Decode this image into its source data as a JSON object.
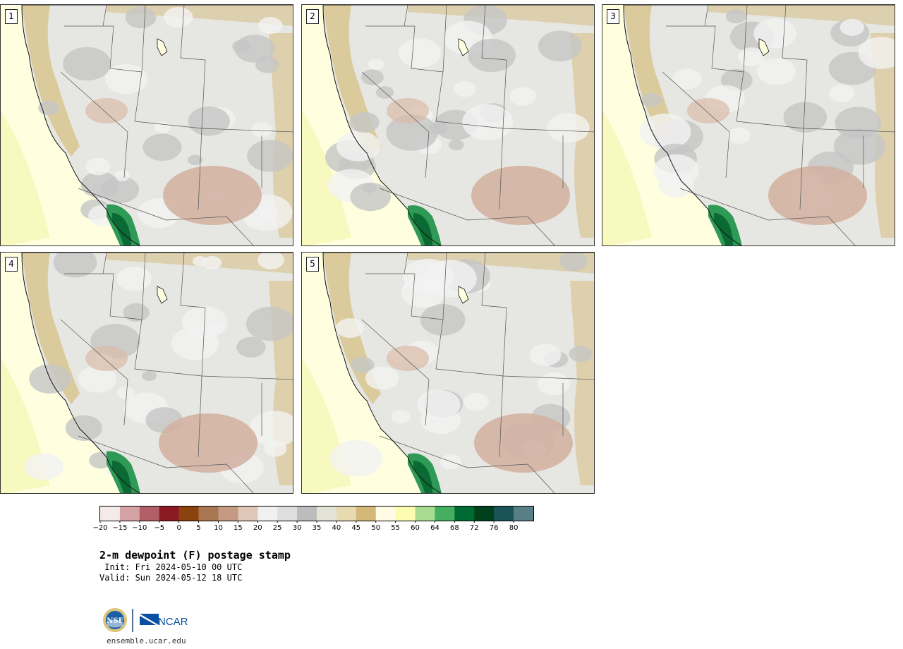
{
  "panels": [
    {
      "label": "1",
      "shift": 0
    },
    {
      "label": "2",
      "shift": 10
    },
    {
      "label": "3",
      "shift": 5
    },
    {
      "label": "4",
      "shift": -6
    },
    {
      "label": "5",
      "shift": 14
    }
  ],
  "colorbar": {
    "colors": [
      "#f5eaea",
      "#d4a1a4",
      "#b06066",
      "#8b1a24",
      "#8b420f",
      "#a97652",
      "#c49b82",
      "#dfc7b8",
      "#f0f0f0",
      "#dedede",
      "#bcbcbc",
      "#e3e3d6",
      "#e8d9b1",
      "#d4b87a",
      "#fffbe4",
      "#fbfcb1",
      "#a7dc90",
      "#45ae60",
      "#006a33",
      "#00401a",
      "#1a5358",
      "#587f86"
    ],
    "ticks": [
      "−20",
      "−15",
      "−10",
      "−5",
      "0",
      "5",
      "10",
      "15",
      "20",
      "25",
      "30",
      "35",
      "40",
      "45",
      "50",
      "55",
      "60",
      "64",
      "68",
      "72",
      "76",
      "80"
    ]
  },
  "title": "2-m dewpoint (F) postage stamp",
  "init": " Init: Fri 2024-05-10 00 UTC",
  "valid": "Valid: Sun 2024-05-12 18 UTC",
  "logo": {
    "nsf": "NSF",
    "ncar": "NCAR"
  },
  "site": "ensemble.ucar.edu"
}
